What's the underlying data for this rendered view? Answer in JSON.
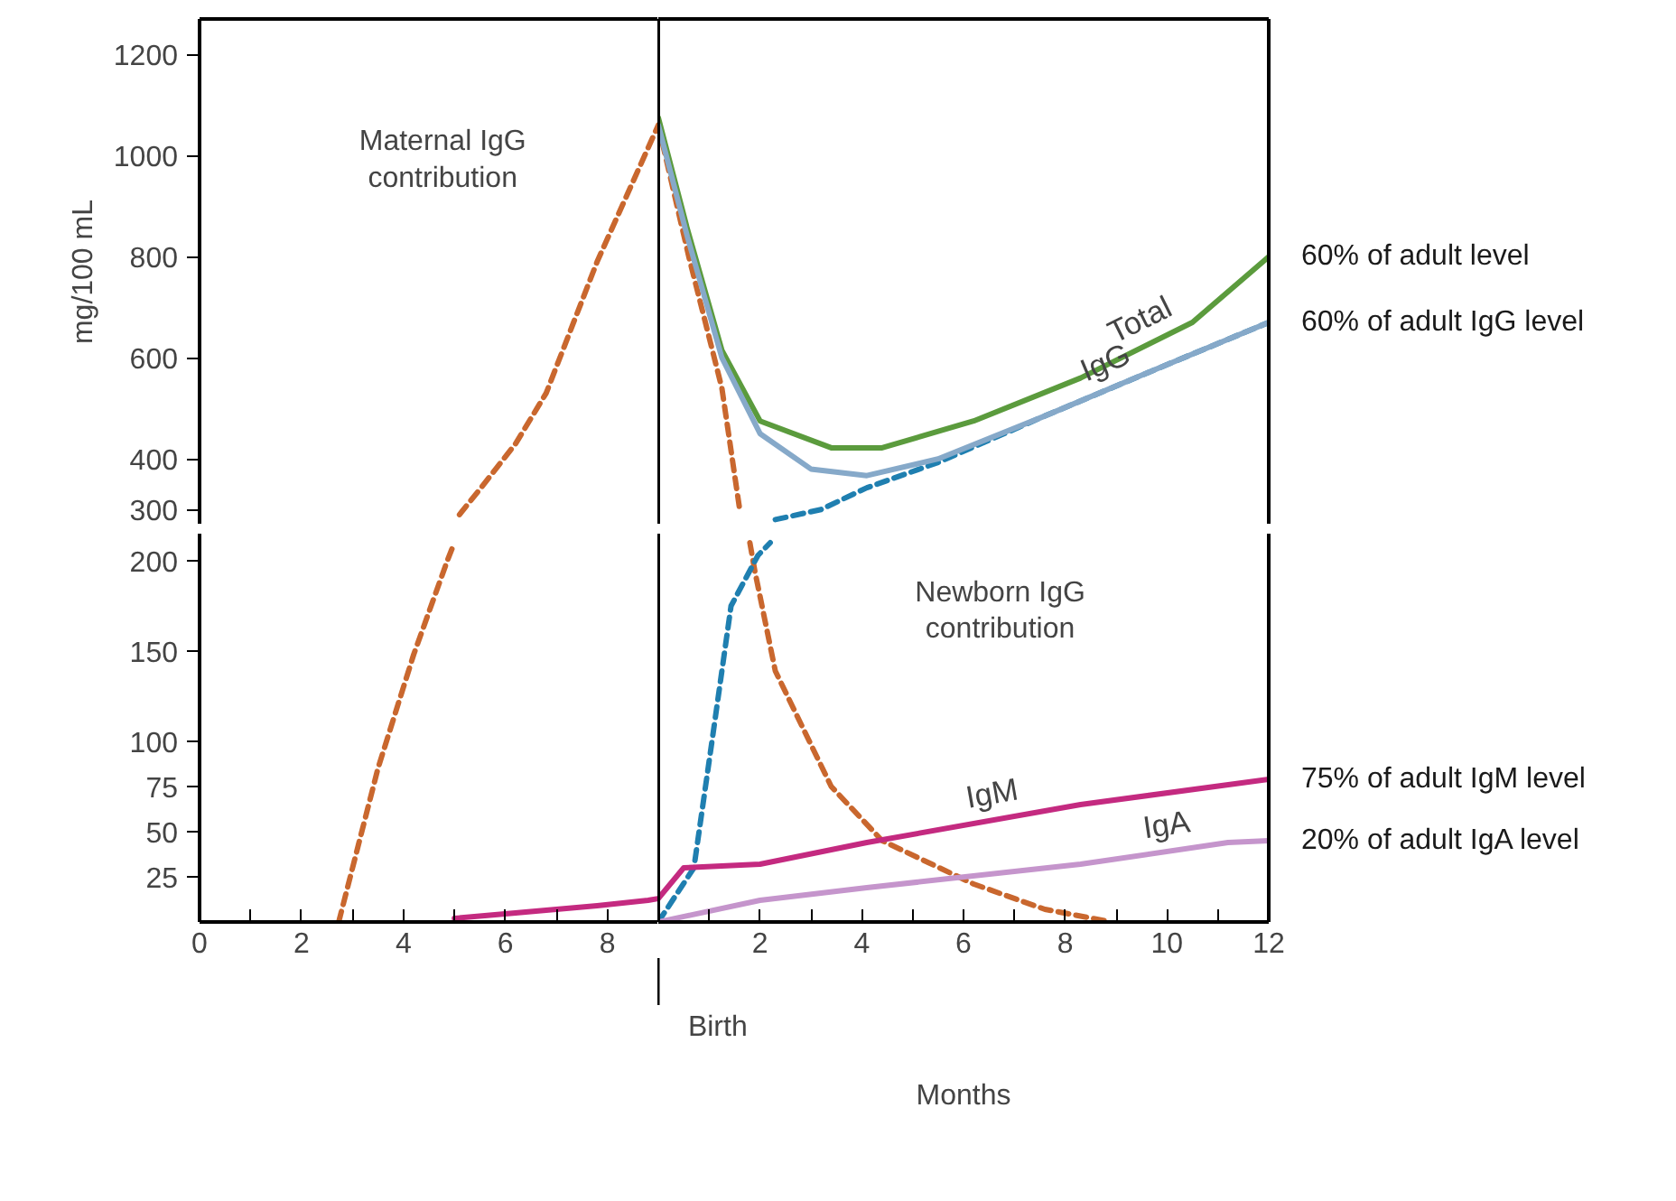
{
  "chart_data": [
    {
      "type": "line",
      "ylabel": "mg/100 mL",
      "xlim": [
        0,
        9
      ],
      "ylim": [
        270,
        1270
      ],
      "tick_labels": "y",
      "yticks": [
        300,
        400,
        600,
        800,
        1000,
        1200
      ],
      "series": [
        {
          "color": "#c9672e",
          "line_style": "dashed",
          "x": [
            5.1,
            5.5,
            6.2,
            6.8,
            7.8,
            9.0
          ],
          "values": [
            290,
            340,
            430,
            530,
            790,
            1060
          ]
        }
      ],
      "annotations": [
        "Maternal IgG\ncontribution"
      ]
    },
    {
      "type": "line",
      "xlim": [
        0,
        12
      ],
      "ylim": [
        270,
        1270
      ],
      "tick_labels": false,
      "series": [
        {
          "color": "#c9672e",
          "line_style": "dashed",
          "x": [
            0,
            0.6,
            1.25,
            1.6
          ],
          "values": [
            1060,
            800,
            540,
            300
          ]
        },
        {
          "color": "#1f7fb0",
          "line_style": "dashed",
          "x": [
            2.3,
            3.2,
            4.1,
            5.5,
            7.6,
            9.8,
            12
          ],
          "values": [
            280,
            300,
            343,
            393,
            485,
            578,
            670
          ]
        },
        {
          "name": "Total",
          "color": "#5b9b3d",
          "x": [
            0,
            0.57,
            1.25,
            2,
            3.4,
            4.4,
            6.2,
            8.3,
            10.5,
            12
          ],
          "values": [
            1075,
            855,
            615,
            475,
            422,
            422,
            475,
            560,
            670,
            800
          ]
        },
        {
          "name": "IgG",
          "color": "#86a9c9",
          "x": [
            0,
            0.57,
            1.25,
            2,
            3,
            4.1,
            5.5,
            7.6,
            9.8,
            12
          ],
          "values": [
            1060,
            840,
            600,
            450,
            380,
            367,
            400,
            485,
            578,
            670
          ]
        }
      ],
      "annotations": [
        "60% of adult level",
        "60% of adult IgG level"
      ]
    },
    {
      "type": "line",
      "xlim": [
        0,
        9
      ],
      "ylim": [
        0,
        215
      ],
      "xticks": [
        0,
        {
          "value": 1,
          "label": null
        },
        2,
        {
          "value": 3,
          "label": null
        },
        4,
        {
          "value": 5,
          "label": null
        },
        6,
        {
          "value": 7,
          "label": null
        },
        8
      ],
      "yticks": [
        25,
        50,
        75,
        100,
        150,
        200
      ],
      "series": [
        {
          "color": "#c9672e",
          "line_style": "dashed",
          "x": [
            2.73,
            3.5,
            4.2,
            4.86,
            5.0
          ],
          "values": [
            0,
            85,
            148,
            200,
            210
          ]
        },
        {
          "color": "#c42a80",
          "x": [
            5,
            7.8,
            8.8,
            9.0
          ],
          "values": [
            2,
            9,
            12,
            13
          ]
        }
      ]
    },
    {
      "type": "line",
      "xlabel": "Months",
      "xlim": [
        0,
        12
      ],
      "ylim": [
        0,
        215
      ],
      "tick_labels": "x",
      "xticks": [
        {
          "value": 0,
          "label": null
        },
        {
          "value": 1,
          "label": null
        },
        2,
        {
          "value": 3,
          "label": null
        },
        4,
        {
          "value": 5,
          "label": null
        },
        6,
        {
          "value": 7,
          "label": null
        },
        8,
        {
          "value": 9,
          "label": null
        },
        10,
        {
          "value": 11,
          "label": null
        },
        12
      ],
      "series": [
        {
          "color": "#c9672e",
          "line_style": "dashed",
          "x": [
            1.8,
            1.9,
            2.3,
            3.4,
            4.4,
            6.2,
            7.6,
            8.9
          ],
          "values": [
            210,
            194,
            139,
            75,
            45,
            21,
            7,
            0
          ]
        },
        {
          "color": "#1f7fb0",
          "line_style": "dashed",
          "x": [
            0,
            0.7,
            1.07,
            1.43,
            1.96,
            2.2
          ],
          "values": [
            0,
            30,
            103,
            175,
            203,
            210
          ]
        },
        {
          "name": "IgM",
          "color": "#c42a80",
          "x": [
            0,
            0.5,
            2,
            4.1,
            8.3,
            12
          ],
          "values": [
            13,
            30,
            32,
            44,
            65,
            79
          ]
        },
        {
          "name": "IgA",
          "color": "#c595cc",
          "x": [
            0,
            2,
            4.1,
            8.3,
            11.2,
            12
          ],
          "values": [
            0,
            12,
            19,
            32,
            44,
            45
          ]
        }
      ],
      "annotations": [
        "75% of adult IgM level",
        "20% of adult IgA level",
        "Newborn IgG\ncontribution",
        "Birth"
      ]
    }
  ]
}
